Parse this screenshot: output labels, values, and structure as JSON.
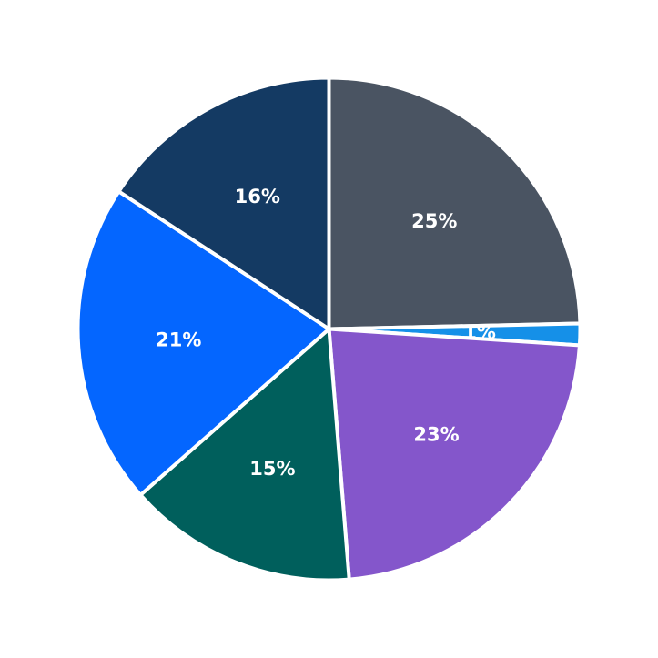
{
  "chart_data": {
    "type": "pie",
    "title": "",
    "start_angle": "12 o'clock",
    "direction": "clockwise",
    "slices": [
      {
        "label": "25%",
        "value": 25,
        "color": "#4a5462"
      },
      {
        "label": "1%",
        "value": 1.4,
        "color": "#1590e8"
      },
      {
        "label": "23%",
        "value": 23,
        "color": "#8456cb"
      },
      {
        "label": "15%",
        "value": 15,
        "color": "#005f5c"
      },
      {
        "label": "21%",
        "value": 21,
        "color": "#0466ff"
      },
      {
        "label": "16%",
        "value": 16,
        "color": "#143a63"
      }
    ]
  }
}
